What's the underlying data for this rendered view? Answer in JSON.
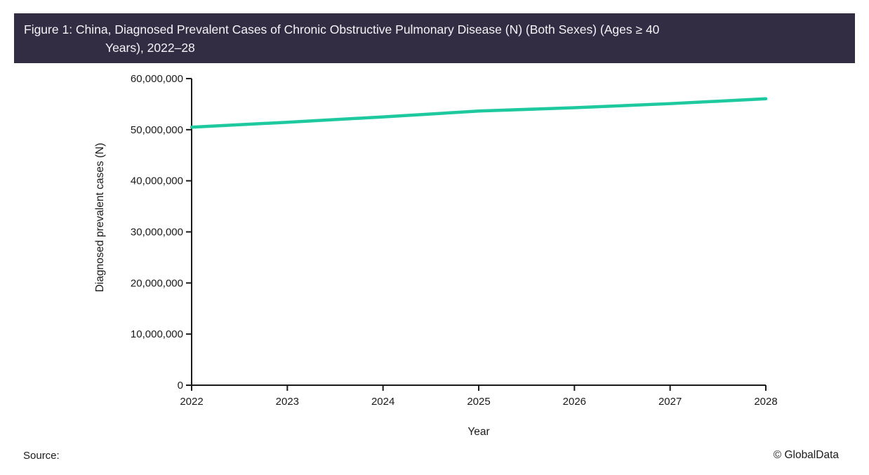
{
  "header": {
    "title_line1": "Figure 1: China, Diagnosed Prevalent Cases of Chronic Obstructive Pulmonary Disease (N) (Both Sexes) (Ages ≥ 40",
    "title_line2": "Years), 2022–28",
    "bg_color": "#332d44",
    "text_color": "#f5f3f7"
  },
  "footer": {
    "source_label": "Source:",
    "copyright": "© GlobalData"
  },
  "chart_data": {
    "type": "line",
    "title": "China, Diagnosed Prevalent Cases of Chronic Obstructive Pulmonary Disease (N) (Both Sexes) (Ages ≥ 40 Years), 2022–28",
    "xlabel": "Year",
    "ylabel": "Diagnosed prevalent cases (N)",
    "x": [
      2022,
      2023,
      2024,
      2025,
      2026,
      2027,
      2028
    ],
    "x_tick_labels": [
      "2022",
      "2023",
      "2024",
      "2025",
      "2026",
      "2027",
      "2028"
    ],
    "series": [
      {
        "name": "Diagnosed prevalent cases (N)",
        "values": [
          50500000,
          51450000,
          52500000,
          53650000,
          54300000,
          55100000,
          56050000
        ],
        "color": "#1ec9a0"
      }
    ],
    "ylim": [
      0,
      60000000
    ],
    "y_ticks": [
      0,
      10000000,
      20000000,
      30000000,
      40000000,
      50000000,
      60000000
    ],
    "y_tick_labels": [
      "0",
      "10,000,000",
      "20,000,000",
      "30,000,000",
      "40,000,000",
      "50,000,000",
      "60,000,000"
    ],
    "grid": false,
    "legend": "none",
    "axis_color": "#1a1a1a",
    "tick_label_color": "#1a1a1a"
  }
}
